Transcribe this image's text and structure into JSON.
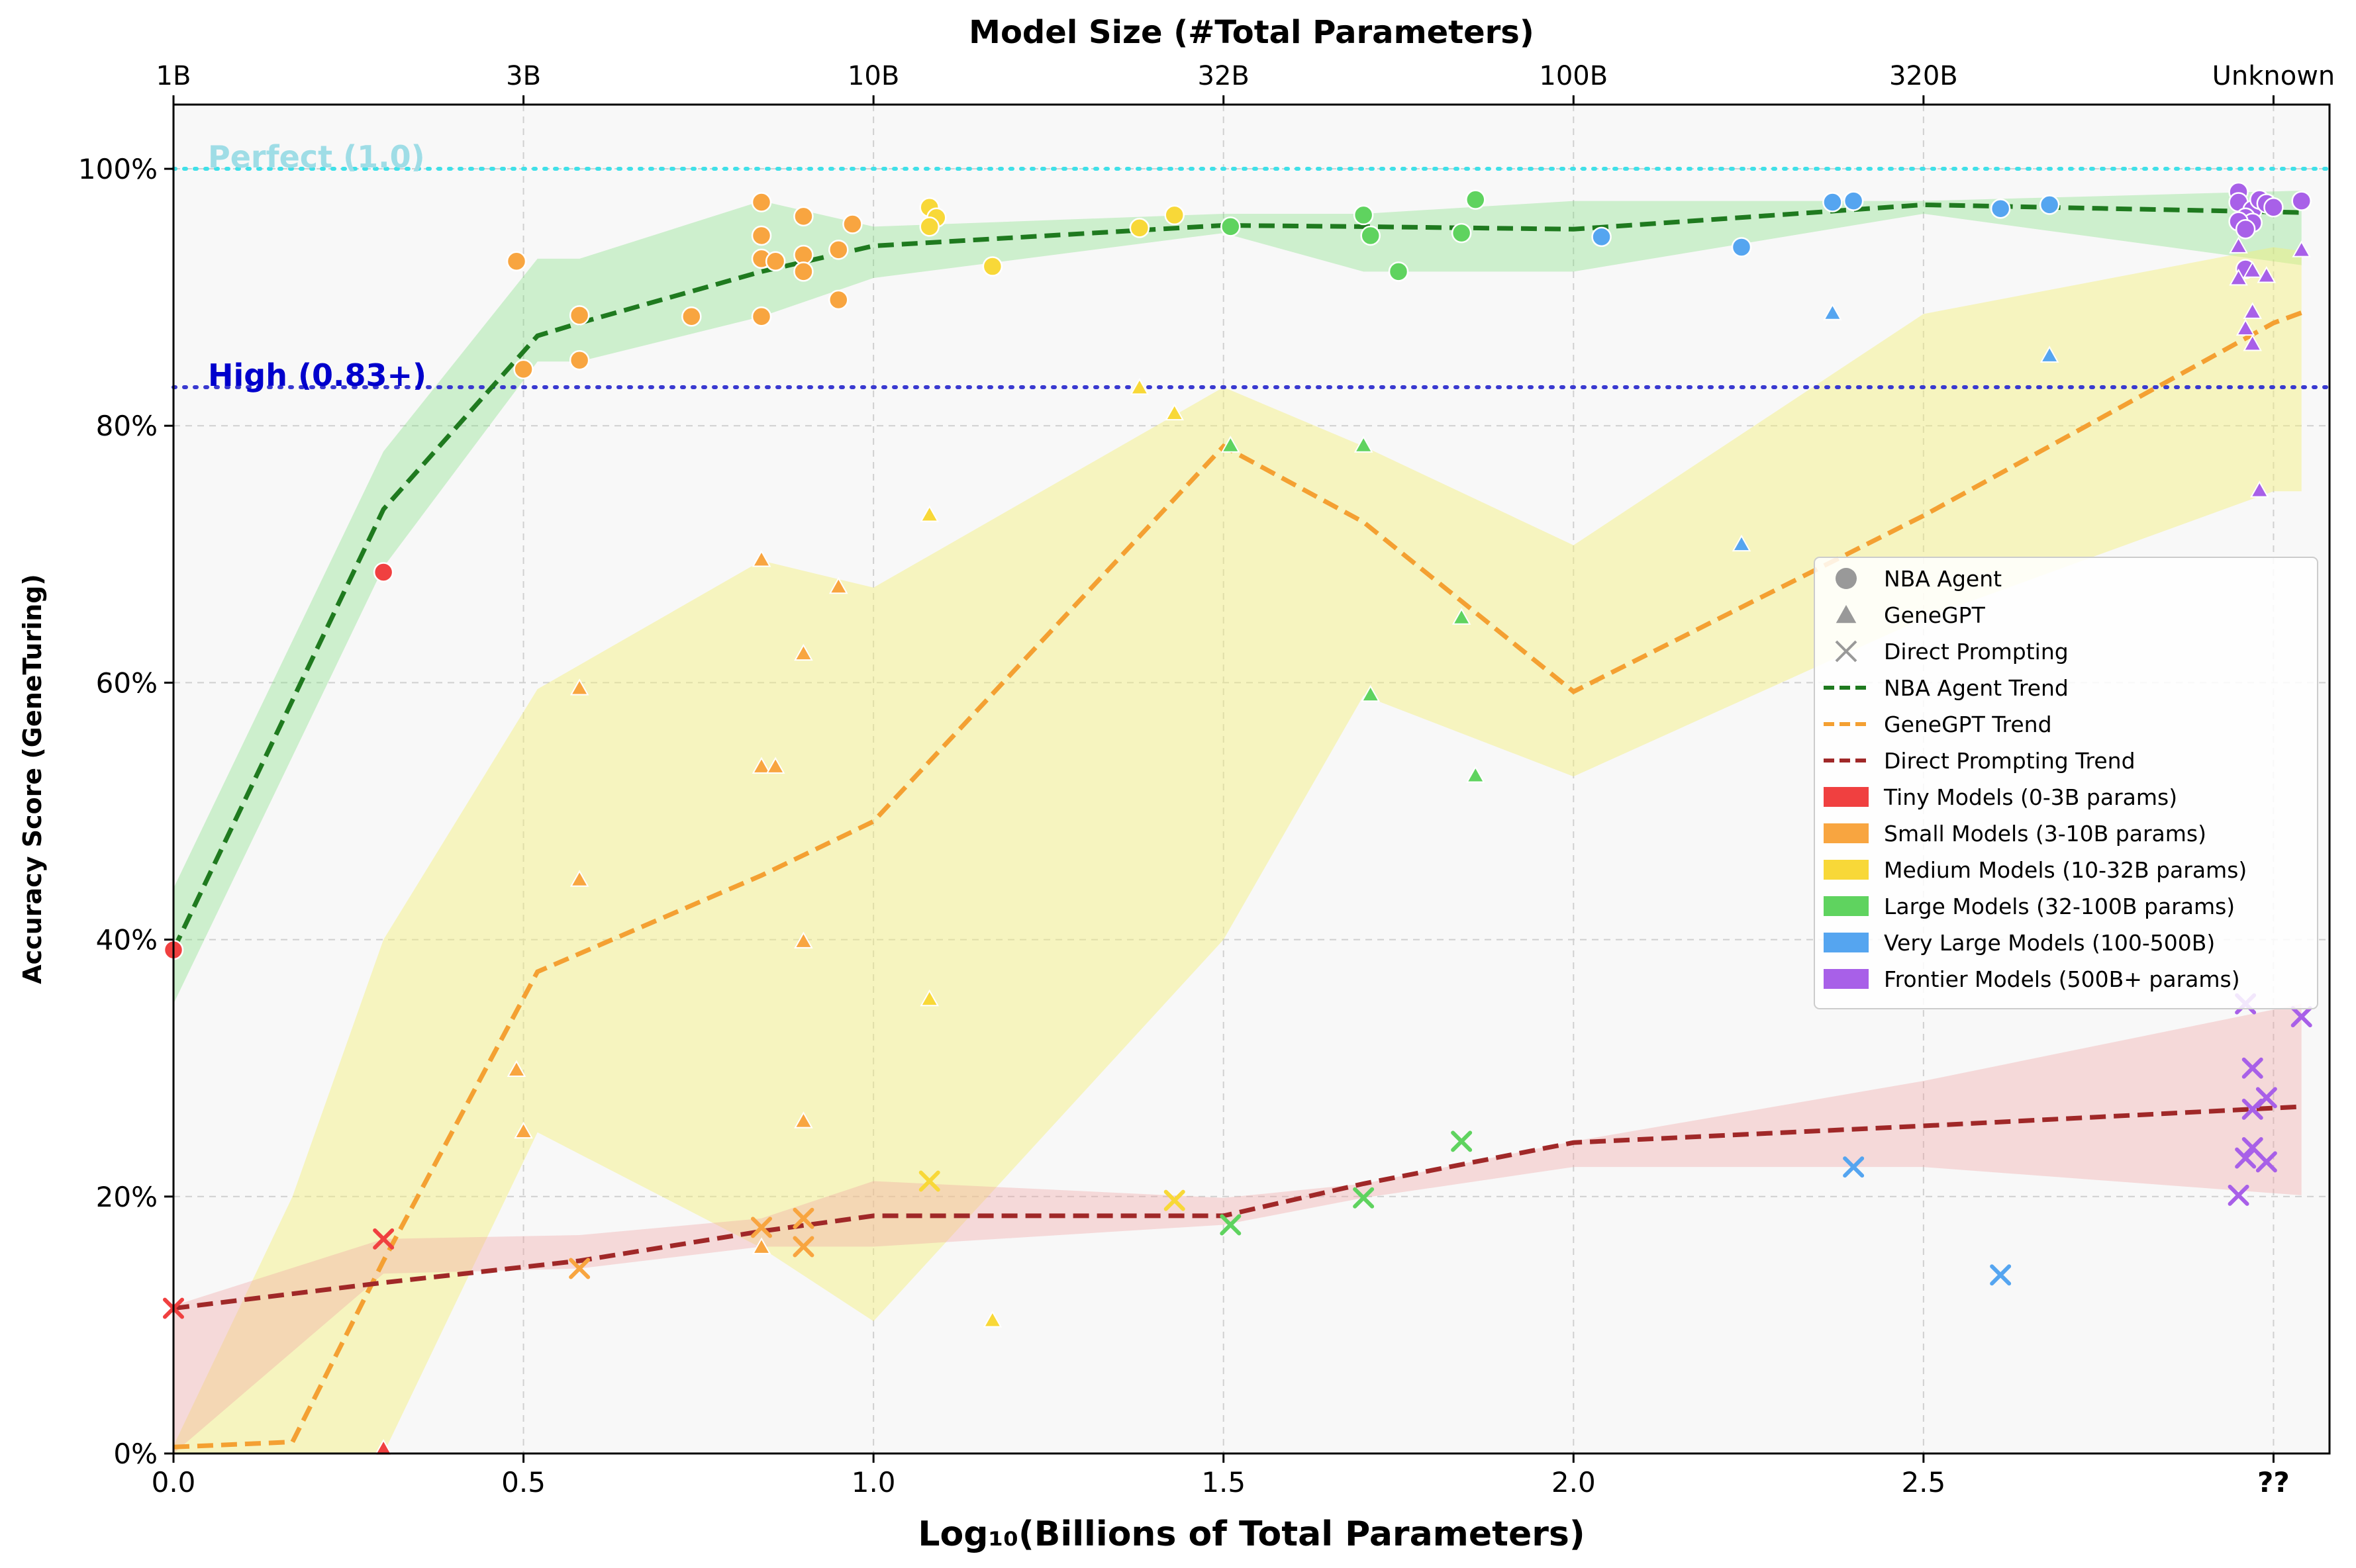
{
  "chart_data": {
    "type": "scatter",
    "title": "",
    "xlabel": "Log₁₀(Billions of Total Parameters)",
    "ylabel": "Accuracy Score (GeneTuring)",
    "top_xlabel": "Model Size (#Total Parameters)",
    "xlim": [
      0.0,
      3.08
    ],
    "ylim": [
      0,
      105
    ],
    "grid": true,
    "legend_position": "center-right",
    "x_ticks": [
      {
        "value": 0.0,
        "label": "0.0"
      },
      {
        "value": 0.5,
        "label": "0.5"
      },
      {
        "value": 1.0,
        "label": "1.0"
      },
      {
        "value": 1.5,
        "label": "1.5"
      },
      {
        "value": 2.0,
        "label": "2.0"
      },
      {
        "value": 2.5,
        "label": "2.5"
      },
      {
        "value": 3.0,
        "label": "??"
      }
    ],
    "top_ticks": [
      {
        "value": 0.0,
        "label": "1B"
      },
      {
        "value": 0.5,
        "label": "3B"
      },
      {
        "value": 1.0,
        "label": "10B"
      },
      {
        "value": 1.5,
        "label": "32B"
      },
      {
        "value": 2.0,
        "label": "100B"
      },
      {
        "value": 2.5,
        "label": "320B"
      },
      {
        "value": 3.0,
        "label": "Unknown"
      }
    ],
    "y_ticks": [
      {
        "value": 0,
        "label": "0%"
      },
      {
        "value": 20,
        "label": "20%"
      },
      {
        "value": 40,
        "label": "40%"
      },
      {
        "value": 60,
        "label": "60%"
      },
      {
        "value": 80,
        "label": "80%"
      },
      {
        "value": 100,
        "label": "100%"
      }
    ],
    "reference_lines": [
      {
        "y": 100,
        "label": "Perfect (1.0)",
        "color": "#40e0e8",
        "text_color": "#9fdde6"
      },
      {
        "y": 83,
        "label": "High (0.83+)",
        "color": "#3a3ad0",
        "text_color": "#0000cc"
      }
    ],
    "size_classes": [
      {
        "key": "tiny",
        "label": "Tiny Models (0-3B params)",
        "color": "#f04040"
      },
      {
        "key": "small",
        "label": "Small Models (3-10B params)",
        "color": "#f8a540"
      },
      {
        "key": "medium",
        "label": "Medium Models (10-32B params)",
        "color": "#f8d838"
      },
      {
        "key": "large",
        "label": "Large Models (32-100B params)",
        "color": "#5fd35f"
      },
      {
        "key": "vlarge",
        "label": "Very Large Models (100-500B)",
        "color": "#55a5f0"
      },
      {
        "key": "frontier",
        "label": "Frontier Models (500B+ params)",
        "color": "#a860e8"
      }
    ],
    "method_legend": [
      {
        "label": "NBA Agent",
        "marker": "circle"
      },
      {
        "label": "GeneGPT",
        "marker": "triangle"
      },
      {
        "label": "Direct Prompting",
        "marker": "x"
      }
    ],
    "series": [
      {
        "name": "NBA Agent",
        "marker": "circle",
        "points": [
          {
            "x": 0.0,
            "y": 39.2,
            "c": "tiny"
          },
          {
            "x": 0.3,
            "y": 68.6,
            "c": "tiny"
          },
          {
            "x": 0.49,
            "y": 92.8,
            "c": "small"
          },
          {
            "x": 0.5,
            "y": 84.4,
            "c": "small"
          },
          {
            "x": 0.58,
            "y": 88.6,
            "c": "small"
          },
          {
            "x": 0.58,
            "y": 85.1,
            "c": "small"
          },
          {
            "x": 0.74,
            "y": 88.5,
            "c": "small"
          },
          {
            "x": 0.84,
            "y": 97.4,
            "c": "small"
          },
          {
            "x": 0.84,
            "y": 94.8,
            "c": "small"
          },
          {
            "x": 0.84,
            "y": 93.0,
            "c": "small"
          },
          {
            "x": 0.86,
            "y": 92.8,
            "c": "small"
          },
          {
            "x": 0.84,
            "y": 88.5,
            "c": "small"
          },
          {
            "x": 0.9,
            "y": 96.3,
            "c": "small"
          },
          {
            "x": 0.9,
            "y": 93.3,
            "c": "small"
          },
          {
            "x": 0.9,
            "y": 92.0,
            "c": "small"
          },
          {
            "x": 0.95,
            "y": 93.7,
            "c": "small"
          },
          {
            "x": 0.95,
            "y": 89.8,
            "c": "small"
          },
          {
            "x": 0.97,
            "y": 95.7,
            "c": "small"
          },
          {
            "x": 1.08,
            "y": 97.0,
            "c": "medium"
          },
          {
            "x": 1.09,
            "y": 96.2,
            "c": "medium"
          },
          {
            "x": 1.08,
            "y": 95.5,
            "c": "medium"
          },
          {
            "x": 1.17,
            "y": 92.4,
            "c": "medium"
          },
          {
            "x": 1.38,
            "y": 95.4,
            "c": "medium"
          },
          {
            "x": 1.43,
            "y": 96.4,
            "c": "medium"
          },
          {
            "x": 1.51,
            "y": 95.5,
            "c": "large"
          },
          {
            "x": 1.7,
            "y": 96.4,
            "c": "large"
          },
          {
            "x": 1.71,
            "y": 94.8,
            "c": "large"
          },
          {
            "x": 1.75,
            "y": 92.0,
            "c": "large"
          },
          {
            "x": 1.84,
            "y": 95.0,
            "c": "large"
          },
          {
            "x": 1.86,
            "y": 97.6,
            "c": "large"
          },
          {
            "x": 2.04,
            "y": 94.7,
            "c": "vlarge"
          },
          {
            "x": 2.24,
            "y": 93.9,
            "c": "vlarge"
          },
          {
            "x": 2.37,
            "y": 97.4,
            "c": "vlarge"
          },
          {
            "x": 2.4,
            "y": 97.5,
            "c": "vlarge"
          },
          {
            "x": 2.61,
            "y": 96.9,
            "c": "vlarge"
          },
          {
            "x": 2.68,
            "y": 97.2,
            "c": "vlarge"
          },
          {
            "x": 2.95,
            "y": 98.2,
            "c": "frontier"
          },
          {
            "x": 2.95,
            "y": 97.4,
            "c": "frontier"
          },
          {
            "x": 2.97,
            "y": 96.8,
            "c": "frontier"
          },
          {
            "x": 2.98,
            "y": 97.6,
            "c": "frontier"
          },
          {
            "x": 2.99,
            "y": 97.3,
            "c": "frontier"
          },
          {
            "x": 3.0,
            "y": 97.0,
            "c": "frontier"
          },
          {
            "x": 2.96,
            "y": 96.2,
            "c": "frontier"
          },
          {
            "x": 2.97,
            "y": 95.8,
            "c": "frontier"
          },
          {
            "x": 2.95,
            "y": 95.9,
            "c": "frontier"
          },
          {
            "x": 2.96,
            "y": 95.3,
            "c": "frontier"
          },
          {
            "x": 3.04,
            "y": 97.5,
            "c": "frontier"
          },
          {
            "x": 2.96,
            "y": 92.2,
            "c": "frontier"
          }
        ]
      },
      {
        "name": "GeneGPT",
        "marker": "triangle",
        "points": [
          {
            "x": 0.3,
            "y": 0.3,
            "c": "tiny"
          },
          {
            "x": 0.49,
            "y": 29.8,
            "c": "small"
          },
          {
            "x": 0.5,
            "y": 25.0,
            "c": "small"
          },
          {
            "x": 0.58,
            "y": 59.5,
            "c": "small"
          },
          {
            "x": 0.58,
            "y": 44.6,
            "c": "small"
          },
          {
            "x": 0.84,
            "y": 69.5,
            "c": "small"
          },
          {
            "x": 0.84,
            "y": 53.4,
            "c": "small"
          },
          {
            "x": 0.86,
            "y": 53.4,
            "c": "small"
          },
          {
            "x": 0.84,
            "y": 16.0,
            "c": "small"
          },
          {
            "x": 0.9,
            "y": 62.2,
            "c": "small"
          },
          {
            "x": 0.9,
            "y": 39.8,
            "c": "small"
          },
          {
            "x": 0.9,
            "y": 25.8,
            "c": "small"
          },
          {
            "x": 0.95,
            "y": 67.4,
            "c": "small"
          },
          {
            "x": 1.08,
            "y": 73.0,
            "c": "medium"
          },
          {
            "x": 1.08,
            "y": 35.3,
            "c": "medium"
          },
          {
            "x": 1.17,
            "y": 10.3,
            "c": "medium"
          },
          {
            "x": 1.38,
            "y": 82.9,
            "c": "medium"
          },
          {
            "x": 1.43,
            "y": 80.9,
            "c": "medium"
          },
          {
            "x": 1.51,
            "y": 78.4,
            "c": "large"
          },
          {
            "x": 1.7,
            "y": 78.4,
            "c": "large"
          },
          {
            "x": 1.71,
            "y": 59.0,
            "c": "large"
          },
          {
            "x": 1.84,
            "y": 65.0,
            "c": "large"
          },
          {
            "x": 1.86,
            "y": 52.7,
            "c": "large"
          },
          {
            "x": 2.24,
            "y": 70.7,
            "c": "vlarge"
          },
          {
            "x": 2.37,
            "y": 88.7,
            "c": "vlarge"
          },
          {
            "x": 2.68,
            "y": 85.4,
            "c": "vlarge"
          },
          {
            "x": 2.95,
            "y": 93.9,
            "c": "frontier"
          },
          {
            "x": 2.95,
            "y": 91.4,
            "c": "frontier"
          },
          {
            "x": 2.97,
            "y": 92.0,
            "c": "frontier"
          },
          {
            "x": 2.99,
            "y": 91.6,
            "c": "frontier"
          },
          {
            "x": 3.04,
            "y": 93.6,
            "c": "frontier"
          },
          {
            "x": 2.96,
            "y": 87.5,
            "c": "frontier"
          },
          {
            "x": 2.97,
            "y": 88.8,
            "c": "frontier"
          },
          {
            "x": 2.97,
            "y": 86.3,
            "c": "frontier"
          },
          {
            "x": 2.98,
            "y": 74.9,
            "c": "frontier"
          }
        ]
      },
      {
        "name": "Direct Prompting",
        "marker": "x",
        "points": [
          {
            "x": 0.0,
            "y": 11.3,
            "c": "tiny"
          },
          {
            "x": 0.3,
            "y": 16.7,
            "c": "tiny"
          },
          {
            "x": 0.58,
            "y": 14.4,
            "c": "small"
          },
          {
            "x": 0.84,
            "y": 17.6,
            "c": "small"
          },
          {
            "x": 0.9,
            "y": 18.3,
            "c": "small"
          },
          {
            "x": 0.9,
            "y": 16.1,
            "c": "small"
          },
          {
            "x": 1.08,
            "y": 21.2,
            "c": "medium"
          },
          {
            "x": 1.43,
            "y": 19.7,
            "c": "medium"
          },
          {
            "x": 1.51,
            "y": 17.8,
            "c": "large"
          },
          {
            "x": 1.7,
            "y": 19.9,
            "c": "large"
          },
          {
            "x": 1.84,
            "y": 24.3,
            "c": "large"
          },
          {
            "x": 2.4,
            "y": 22.3,
            "c": "vlarge"
          },
          {
            "x": 2.61,
            "y": 13.9,
            "c": "vlarge"
          },
          {
            "x": 2.96,
            "y": 35.0,
            "c": "frontier"
          },
          {
            "x": 3.04,
            "y": 34.0,
            "c": "frontier"
          },
          {
            "x": 2.97,
            "y": 30.0,
            "c": "frontier"
          },
          {
            "x": 2.99,
            "y": 27.7,
            "c": "frontier"
          },
          {
            "x": 2.97,
            "y": 26.8,
            "c": "frontier"
          },
          {
            "x": 2.97,
            "y": 23.8,
            "c": "frontier"
          },
          {
            "x": 2.96,
            "y": 23.0,
            "c": "frontier"
          },
          {
            "x": 2.99,
            "y": 22.7,
            "c": "frontier"
          },
          {
            "x": 2.95,
            "y": 20.1,
            "c": "frontier"
          }
        ]
      }
    ],
    "trends": [
      {
        "name": "NBA Agent Trend",
        "color": "#1f7a1f",
        "band_color": "#7ee07e",
        "x": [
          0.0,
          0.3,
          0.52,
          0.58,
          0.84,
          1.0,
          1.5,
          1.7,
          2.0,
          2.5,
          3.04
        ],
        "y": [
          39.2,
          73.5,
          87.0,
          88.0,
          92.0,
          94.0,
          95.6,
          95.5,
          95.3,
          97.2,
          96.6
        ],
        "band_upper": [
          44.0,
          78.0,
          93.0,
          93.0,
          97.5,
          95.5,
          96.5,
          96.5,
          97.5,
          97.5,
          98.3
        ],
        "band_lower": [
          35.0,
          69.0,
          85.0,
          85.0,
          88.5,
          91.5,
          95.0,
          92.0,
          92.0,
          96.5,
          92.5
        ]
      },
      {
        "name": "GeneGPT Trend",
        "color": "#f4a032",
        "band_color": "#f5f07a",
        "x": [
          0.0,
          0.17,
          0.3,
          0.52,
          0.84,
          1.0,
          1.5,
          1.7,
          2.0,
          2.5,
          3.0,
          3.04
        ],
        "y": [
          0.5,
          0.9,
          15.0,
          37.5,
          45.0,
          49.2,
          78.4,
          72.5,
          59.3,
          73.0,
          88.0,
          88.8
        ],
        "band_upper": [
          0.6,
          20.0,
          40.0,
          59.5,
          69.5,
          67.4,
          83.0,
          78.4,
          70.7,
          88.7,
          93.9,
          93.6
        ],
        "band_lower": [
          0.0,
          0.0,
          0.0,
          25.0,
          16.0,
          10.3,
          40.0,
          59.0,
          52.7,
          65.0,
          74.9,
          74.9
        ]
      },
      {
        "name": "Direct Prompting Trend",
        "color": "#a02828",
        "band_color": "#f0a0a0",
        "x": [
          0.0,
          0.3,
          0.58,
          0.84,
          1.0,
          1.5,
          1.7,
          2.0,
          2.5,
          3.04
        ],
        "y": [
          11.3,
          13.3,
          15.0,
          17.3,
          18.5,
          18.5,
          21.0,
          24.2,
          25.5,
          27.0
        ],
        "band_upper": [
          11.5,
          16.7,
          17.0,
          18.3,
          21.2,
          19.9,
          21.0,
          24.3,
          29.0,
          35.0
        ],
        "band_lower": [
          0.0,
          14.0,
          14.4,
          16.1,
          16.1,
          17.8,
          19.9,
          22.3,
          22.3,
          20.1
        ]
      }
    ]
  }
}
